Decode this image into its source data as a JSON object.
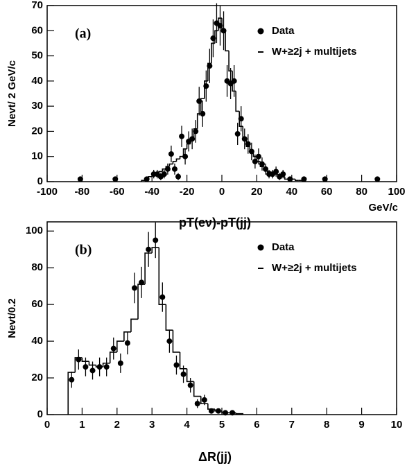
{
  "chart_data": [
    {
      "type": "histogram",
      "panel_label": "(a)",
      "y_label": "Nevt/ 2 GeV/c",
      "x_label": "pT(eν)-pT(jj)",
      "x_unit": "GeV/c",
      "xlim": [
        -100,
        100
      ],
      "xticks": [
        -100,
        -80,
        -60,
        -40,
        -20,
        0,
        20,
        40,
        60,
        80,
        100
      ],
      "ylim": [
        0,
        70
      ],
      "yticks": [
        0,
        10,
        20,
        30,
        40,
        50,
        60,
        70
      ],
      "color": "#000000",
      "series": [
        {
          "name": "Data",
          "kind": "points",
          "x": [
            -81,
            -61,
            -43,
            -39,
            -37,
            -35,
            -33,
            -31,
            -29,
            -27,
            -25,
            -23,
            -21,
            -19,
            -17,
            -15,
            -13,
            -11,
            -9,
            -7,
            -5,
            -3,
            -1,
            1,
            3,
            5,
            7,
            9,
            11,
            13,
            15,
            17,
            19,
            21,
            23,
            25,
            27,
            29,
            31,
            33,
            35,
            39,
            47,
            59,
            89
          ],
          "values": [
            1,
            1,
            1,
            3,
            3,
            2,
            3,
            5,
            11,
            5,
            2,
            18,
            10,
            16,
            17,
            20,
            32,
            27,
            38,
            46,
            57,
            63,
            62,
            60,
            40,
            39,
            40,
            19,
            25,
            17,
            15,
            12,
            8,
            10,
            7,
            5,
            3,
            3,
            4,
            2,
            3,
            1,
            1,
            1,
            1
          ],
          "errors": [
            1,
            1,
            1,
            1.7,
            1.7,
            1.4,
            1.7,
            2.2,
            3.3,
            2.2,
            1.4,
            4.2,
            3.2,
            4,
            4.1,
            4.5,
            5.7,
            5.2,
            6.2,
            6.8,
            7.5,
            7.9,
            7.9,
            7.7,
            6.3,
            6.2,
            6.3,
            4.4,
            5,
            4.1,
            3.9,
            3.5,
            2.8,
            3.2,
            2.6,
            2.2,
            1.7,
            1.7,
            2,
            1.4,
            1.7,
            1,
            1,
            1,
            1
          ]
        },
        {
          "name": "W+≥2j + multijets",
          "kind": "step",
          "bins": [
            -46,
            -44,
            -42,
            -40,
            -38,
            -36,
            -34,
            -32,
            -30,
            -28,
            -26,
            -24,
            -22,
            -20,
            -18,
            -16,
            -14,
            -12,
            -10,
            -8,
            -6,
            -4,
            -2,
            0,
            2,
            4,
            6,
            8,
            10,
            12,
            14,
            16,
            18,
            20,
            22,
            24,
            26,
            28,
            30,
            32,
            34,
            36,
            38,
            40,
            42,
            44,
            46
          ],
          "values": [
            0.5,
            1,
            2,
            3,
            3,
            4,
            5,
            6,
            7,
            8,
            9,
            10,
            13,
            15,
            17,
            21,
            27,
            33,
            40,
            47,
            55,
            60,
            65,
            60,
            52,
            44,
            36,
            28,
            22,
            17,
            14,
            12,
            10,
            8,
            6,
            5,
            4,
            3,
            3,
            2,
            2,
            1,
            1,
            1,
            0.5,
            0.5
          ]
        }
      ]
    },
    {
      "type": "histogram",
      "panel_label": "(b)",
      "y_label": "Nevt/0.2",
      "x_label": "ΔR(jj)",
      "xlim": [
        0,
        10
      ],
      "xticks": [
        0,
        1,
        2,
        3,
        4,
        5,
        6,
        7,
        8,
        9,
        10
      ],
      "ylim": [
        0,
        105
      ],
      "yticks": [
        0,
        20,
        40,
        60,
        80,
        100
      ],
      "color": "#000000",
      "series": [
        {
          "name": "Data",
          "kind": "points",
          "x": [
            0.7,
            0.9,
            1.1,
            1.3,
            1.5,
            1.7,
            1.9,
            2.1,
            2.3,
            2.5,
            2.7,
            2.9,
            3.1,
            3.3,
            3.5,
            3.7,
            3.9,
            4.1,
            4.3,
            4.5,
            4.7,
            4.9,
            5.1,
            5.3
          ],
          "values": [
            19,
            30,
            26,
            24,
            26,
            26,
            36,
            28,
            39,
            69,
            72,
            90,
            95,
            64,
            40,
            27,
            22,
            16,
            6,
            8,
            2,
            2,
            1,
            1
          ],
          "errors": [
            4.4,
            5.5,
            5.1,
            4.9,
            5.1,
            5.1,
            6,
            5.3,
            6.2,
            8.3,
            8.5,
            9.5,
            9.7,
            8,
            6.3,
            5.2,
            4.7,
            4,
            2.4,
            2.8,
            1.4,
            1.4,
            1,
            1
          ]
        },
        {
          "name": "W+≥2j + multijets",
          "kind": "step",
          "bins": [
            0.6,
            0.8,
            1.0,
            1.2,
            1.4,
            1.6,
            1.8,
            2.0,
            2.2,
            2.4,
            2.6,
            2.8,
            3.0,
            3.2,
            3.4,
            3.6,
            3.8,
            4.0,
            4.2,
            4.4,
            4.6,
            4.8,
            5.0,
            5.2,
            5.4,
            5.6
          ],
          "values": [
            23,
            31,
            29,
            27,
            26,
            28,
            34,
            40,
            45,
            52,
            71,
            88,
            91,
            60,
            46,
            34,
            25,
            18,
            10,
            6,
            3,
            2,
            1,
            1,
            0.5
          ]
        }
      ]
    }
  ]
}
